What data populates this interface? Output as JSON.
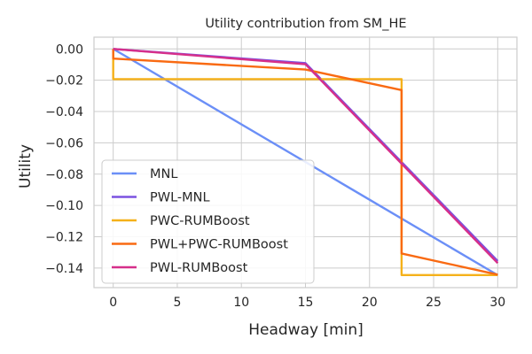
{
  "chart_data": {
    "type": "line",
    "title": "Utility contribution from SM_HE",
    "xlabel": "Headway [min]",
    "ylabel": "Utility",
    "xlim": [
      -1.5,
      31.5
    ],
    "ylim": [
      -0.1525,
      0.0075
    ],
    "xticks": [
      0,
      5,
      10,
      15,
      20,
      25,
      30
    ],
    "xtick_labels": [
      "0",
      "5",
      "10",
      "15",
      "20",
      "25",
      "30"
    ],
    "yticks": [
      0.0,
      -0.02,
      -0.04,
      -0.06,
      -0.08,
      -0.1,
      -0.12,
      -0.14
    ],
    "ytick_labels": [
      "0.00",
      "−0.02",
      "−0.04",
      "−0.06",
      "−0.08",
      "−0.10",
      "−0.12",
      "−0.14"
    ],
    "grid": true,
    "legend_position": "lower-left",
    "series": [
      {
        "name": "MNL",
        "color": "#6b8ff7",
        "points": [
          [
            0,
            0.0
          ],
          [
            30,
            -0.1445
          ]
        ]
      },
      {
        "name": "PWL-MNL",
        "color": "#7b52e0",
        "points": [
          [
            0,
            0.0
          ],
          [
            15,
            -0.0091
          ],
          [
            30,
            -0.1355
          ]
        ]
      },
      {
        "name": "PWC-RUMBoost",
        "color": "#f5b11a",
        "points": [
          [
            0,
            0.0
          ],
          [
            0,
            -0.0193
          ],
          [
            22.5,
            -0.0193
          ],
          [
            22.5,
            -0.1445
          ],
          [
            30,
            -0.1445
          ]
        ]
      },
      {
        "name": "PWL+PWC-RUMBoost",
        "color": "#f96a12",
        "points": [
          [
            0,
            0.0
          ],
          [
            0,
            -0.0062
          ],
          [
            15,
            -0.0132
          ],
          [
            22.5,
            -0.0263
          ],
          [
            22.5,
            -0.1307
          ],
          [
            30,
            -0.1442
          ]
        ]
      },
      {
        "name": "PWL-RUMBoost",
        "color": "#d62f8a",
        "points": [
          [
            0,
            0.0
          ],
          [
            15,
            -0.0098
          ],
          [
            30,
            -0.1368
          ]
        ]
      }
    ]
  }
}
